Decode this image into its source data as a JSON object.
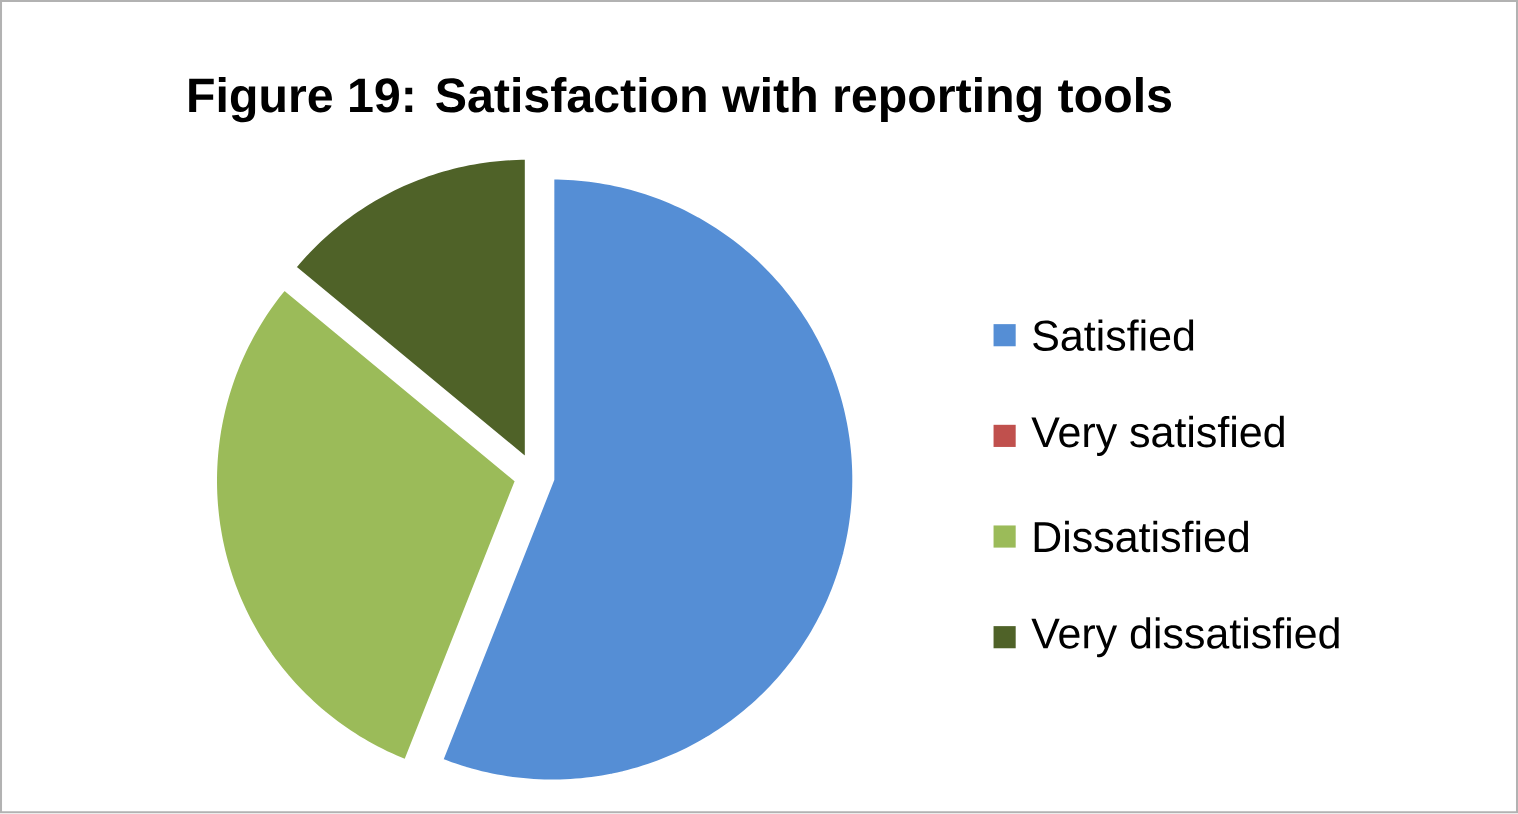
{
  "chart_data": {
    "type": "pie",
    "title": "Figure 19: Satisfaction with reporting tools",
    "categories": [
      "Satisfied",
      "Very satisfied",
      "Dissatisfied",
      "Very dissatisfied"
    ],
    "values": [
      56,
      0,
      30,
      14
    ],
    "colors": [
      "#558ed5",
      "#c0504d",
      "#9bbb59",
      "#4f6228"
    ],
    "legend": "right"
  }
}
